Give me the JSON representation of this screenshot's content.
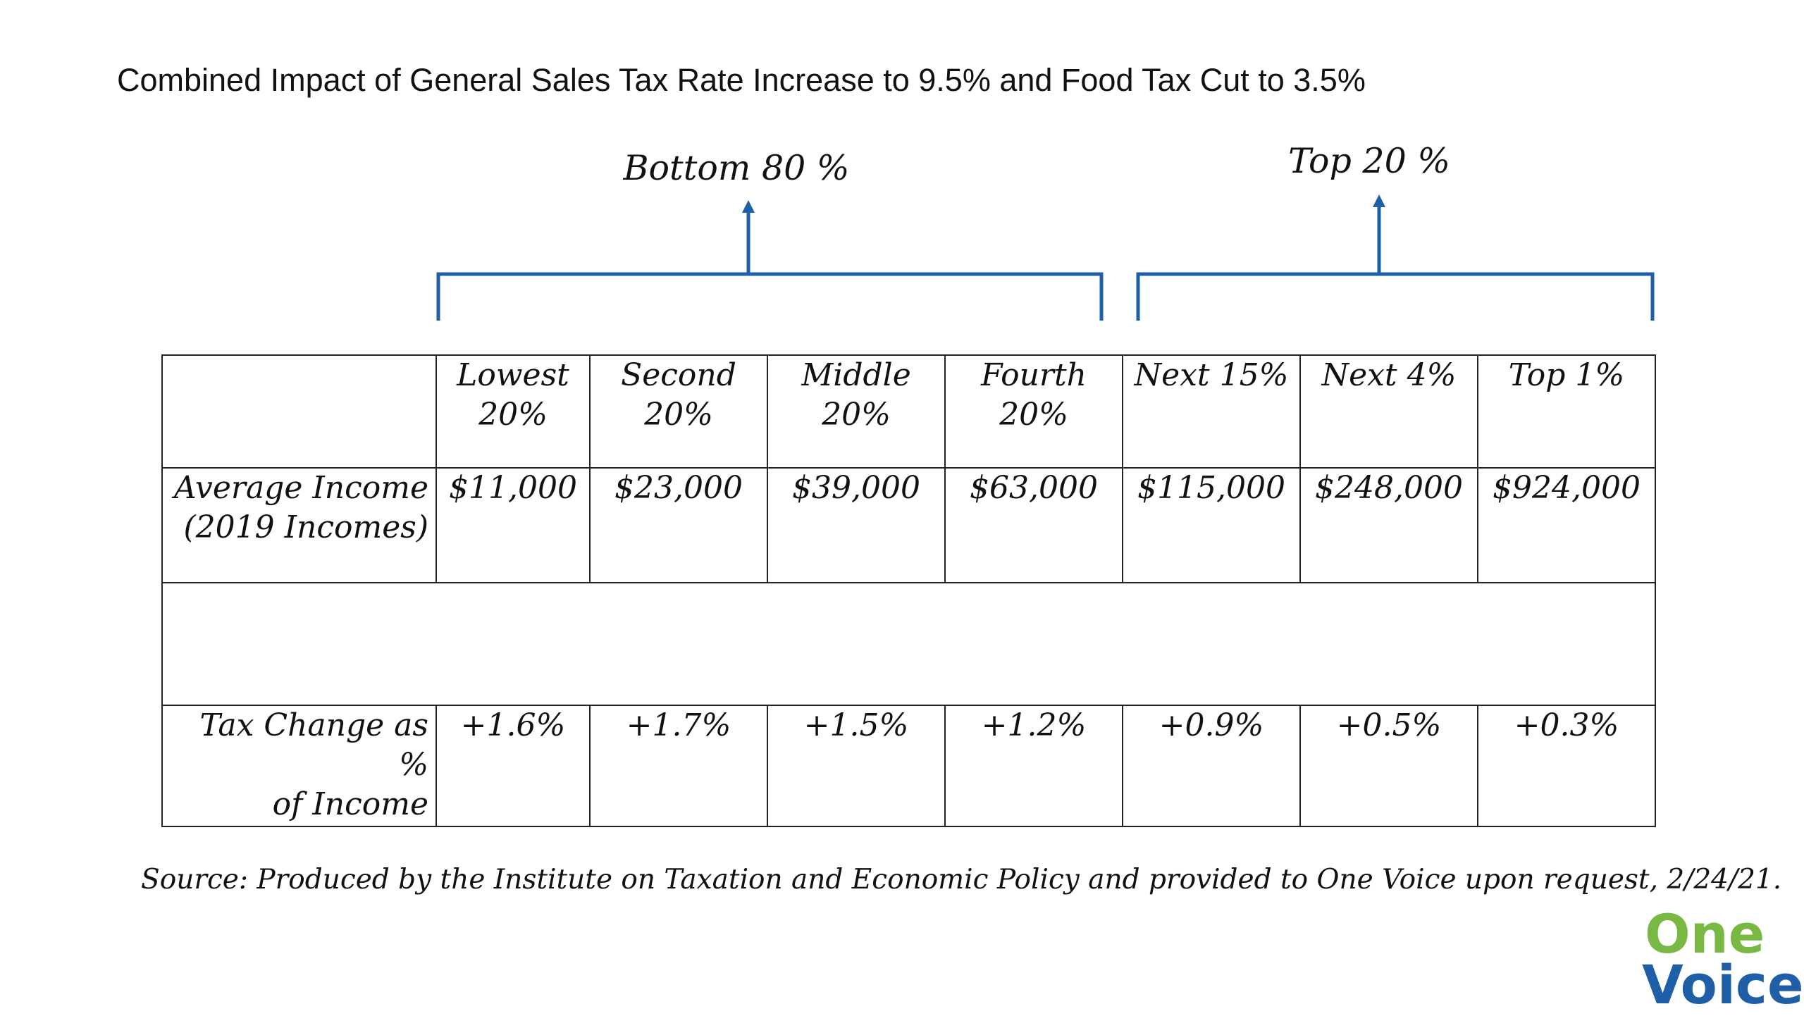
{
  "title": "Combined Impact of General Sales Tax Rate Increase to 9.5% and Food Tax Cut to 3.5%",
  "groups": {
    "bottom": "Bottom 80 %",
    "top": "Top 20 %"
  },
  "table": {
    "columns": [
      {
        "line1": "Lowest",
        "line2": "20%"
      },
      {
        "line1": "Second",
        "line2": "20%"
      },
      {
        "line1": "Middle",
        "line2": "20%"
      },
      {
        "line1": "Fourth",
        "line2": "20%"
      },
      {
        "line1": "Next 15%",
        "line2": ""
      },
      {
        "line1": "Next 4%",
        "line2": ""
      },
      {
        "line1": "Top 1%",
        "line2": ""
      }
    ],
    "income_label_line1": "Average Income",
    "income_label_line2": "(2019 Incomes)",
    "incomes": [
      "$11,000",
      "$23,000",
      "$39,000",
      "$63,000",
      "$115,000",
      "$248,000",
      "$924,000"
    ],
    "change_label_line1": "Tax Change as %",
    "change_label_line2": "of Income",
    "changes": [
      "+1.6%",
      "+1.7%",
      "+1.5%",
      "+1.2%",
      "+0.9%",
      "+0.5%",
      "+0.3%"
    ]
  },
  "source": "Source: Produced by the Institute on Taxation and Economic Policy and provided to One Voice upon request, 2/24/21.",
  "logo": {
    "line1": "One",
    "line2": "Voice"
  },
  "colors": {
    "bracket": "#1f5fa8",
    "logo_green": "#78b843",
    "logo_blue": "#1f5fa8"
  }
}
